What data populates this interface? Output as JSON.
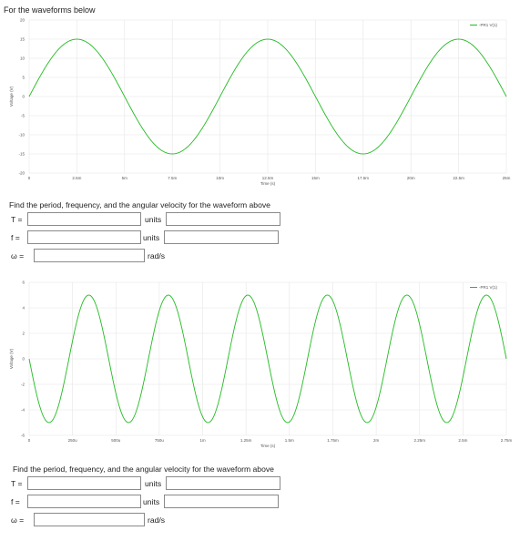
{
  "intro_text": "For the waveforms below",
  "chart_data": [
    {
      "type": "line",
      "xlabel": "Time (s)",
      "ylabel": "Voltage (V)",
      "legend": "-PR1 V(1)",
      "legend_position": "top-right",
      "xlim": [
        0,
        0.025
      ],
      "ylim": [
        -20,
        20
      ],
      "x_ticks": [
        "0",
        "2.5m",
        "5m",
        "7.5m",
        "10m",
        "12.5m",
        "15m",
        "17.5m",
        "20m",
        "22.5m",
        "25m"
      ],
      "y_ticks": [
        "20",
        "15",
        "10",
        "5",
        "0",
        "-5",
        "-10",
        "-15",
        "-20"
      ],
      "grid": true,
      "series": [
        {
          "name": "-PR1 V(1)",
          "function": "sine",
          "amplitude": 15,
          "period": 0.01,
          "phase_deg": 0,
          "offset": 0
        }
      ]
    },
    {
      "type": "line",
      "xlabel": "Time (s)",
      "ylabel": "Voltage (V)",
      "legend": "-PR1 V(1)",
      "legend_position": "top-right",
      "xlim": [
        0,
        0.003
      ],
      "ylim": [
        -6,
        6
      ],
      "x_ticks": [
        "0",
        "250u",
        "500u",
        "750u",
        "1m",
        "1.25m",
        "1.5m",
        "1.75m",
        "2m",
        "2.25m",
        "2.5m",
        "2.75m"
      ],
      "y_ticks": [
        "6",
        "4",
        "2",
        "0",
        "-2",
        "-4",
        "-6"
      ],
      "grid": true,
      "series": [
        {
          "name": "-PR1 V(1)",
          "function": "sine",
          "amplitude": 5,
          "period": 0.0005,
          "phase_deg": 180,
          "offset": 0
        }
      ]
    }
  ],
  "questions": [
    {
      "title": "Find the period, frequency, and the angular velocity for the waveform above",
      "T_label": "T =",
      "f_label": "f =",
      "w_label": "ω =",
      "T_value": "",
      "f_value": "",
      "w_value": "",
      "T_unit_label": "units",
      "f_unit_label": "units",
      "w_unit_label": "rad/s",
      "T_unit_value": "",
      "f_unit_value": ""
    },
    {
      "title": "Find the period, frequency, and the angular velocity for the waveform above",
      "T_label": "T =",
      "f_label": "f =",
      "w_label": "ω =",
      "T_value": "",
      "f_value": "",
      "w_value": "",
      "T_unit_label": "units",
      "f_unit_label": "units",
      "w_unit_label": "rad/s",
      "T_unit_value": "",
      "f_unit_value": ""
    }
  ],
  "colors": {
    "trace": "#22bb22",
    "grid": "#e6e6e6",
    "axis_text": "#555555"
  }
}
